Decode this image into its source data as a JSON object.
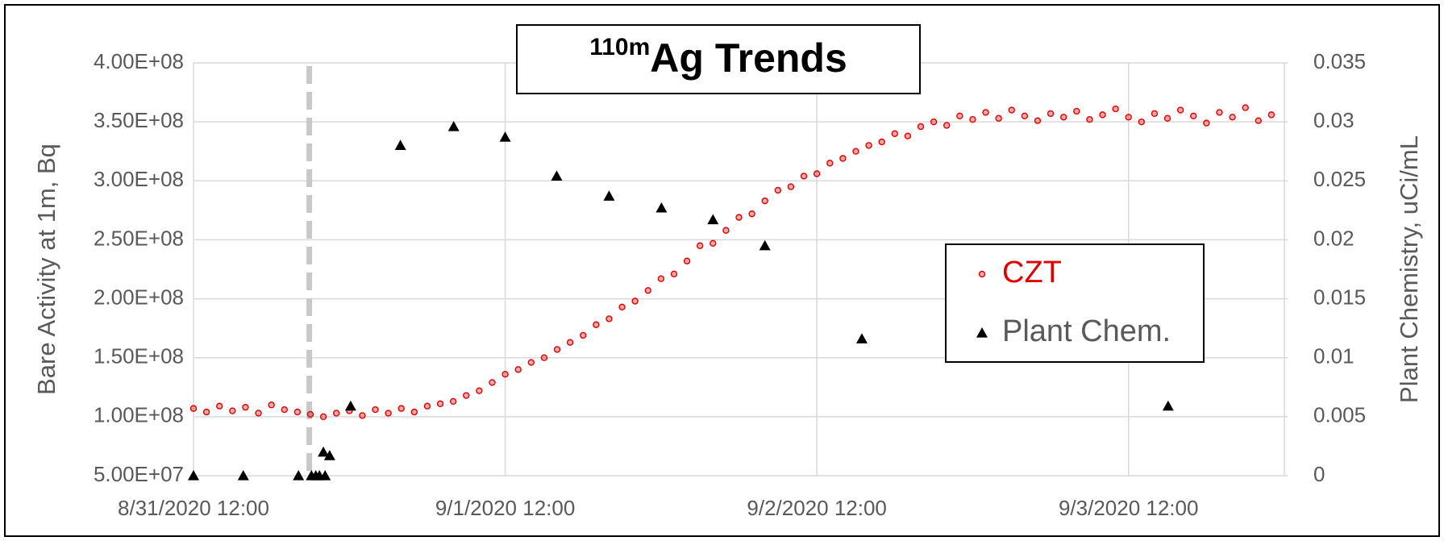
{
  "chart_data": {
    "type": "scatter",
    "title_superscript": "110m",
    "title": "Ag Trends",
    "ylabel": "Bare Activity at 1m, Bq",
    "y2label": "Plant Chemistry, uCi/mL",
    "xlim": [
      "2020-08-31T12:00",
      "2020-09-04T00:00"
    ],
    "xticks": [
      {
        "value": "2020-08-31T12:00",
        "label": "8/31/2020 12:00"
      },
      {
        "value": "2020-09-01T12:00",
        "label": "9/1/2020 12:00"
      },
      {
        "value": "2020-09-02T12:00",
        "label": "9/2/2020 12:00"
      },
      {
        "value": "2020-09-03T12:00",
        "label": "9/3/2020 12:00"
      }
    ],
    "ylim": [
      50000000,
      400000000
    ],
    "yticks": [
      {
        "value": 50000000,
        "label": "5.00E+07"
      },
      {
        "value": 100000000,
        "label": "1.00E+08"
      },
      {
        "value": 150000000,
        "label": "1.50E+08"
      },
      {
        "value": 200000000,
        "label": "2.00E+08"
      },
      {
        "value": 250000000,
        "label": "2.50E+08"
      },
      {
        "value": 300000000,
        "label": "3.00E+08"
      },
      {
        "value": 350000000,
        "label": "3.50E+08"
      },
      {
        "value": 400000000,
        "label": "4.00E+08"
      }
    ],
    "y2lim": [
      0,
      0.035
    ],
    "y2ticks": [
      0,
      0.005,
      0.01,
      0.015,
      0.02,
      0.025,
      0.03,
      0.035
    ],
    "grid": true,
    "legend": "right",
    "vlines": [
      "2020-08-31T20:55"
    ],
    "series": [
      {
        "name": "CZT",
        "color": "#e00000",
        "marker": "circle",
        "axis": "y",
        "x": [
          "2020-08-31T12:00",
          "2020-08-31T13:00",
          "2020-08-31T14:00",
          "2020-08-31T15:00",
          "2020-08-31T16:00",
          "2020-08-31T17:00",
          "2020-08-31T18:00",
          "2020-08-31T19:00",
          "2020-08-31T20:00",
          "2020-08-31T21:00",
          "2020-08-31T22:00",
          "2020-08-31T23:00",
          "2020-09-01T00:00",
          "2020-09-01T01:00",
          "2020-09-01T02:00",
          "2020-09-01T03:00",
          "2020-09-01T04:00",
          "2020-09-01T05:00",
          "2020-09-01T06:00",
          "2020-09-01T07:00",
          "2020-09-01T08:00",
          "2020-09-01T09:00",
          "2020-09-01T10:00",
          "2020-09-01T11:00",
          "2020-09-01T12:00",
          "2020-09-01T13:00",
          "2020-09-01T14:00",
          "2020-09-01T15:00",
          "2020-09-01T16:00",
          "2020-09-01T17:00",
          "2020-09-01T18:00",
          "2020-09-01T19:00",
          "2020-09-01T20:00",
          "2020-09-01T21:00",
          "2020-09-01T22:00",
          "2020-09-01T23:00",
          "2020-09-02T00:00",
          "2020-09-02T01:00",
          "2020-09-02T02:00",
          "2020-09-02T03:00",
          "2020-09-02T04:00",
          "2020-09-02T05:00",
          "2020-09-02T06:00",
          "2020-09-02T07:00",
          "2020-09-02T08:00",
          "2020-09-02T09:00",
          "2020-09-02T10:00",
          "2020-09-02T11:00",
          "2020-09-02T12:00",
          "2020-09-02T13:00",
          "2020-09-02T14:00",
          "2020-09-02T15:00",
          "2020-09-02T16:00",
          "2020-09-02T17:00",
          "2020-09-02T18:00",
          "2020-09-02T19:00",
          "2020-09-02T20:00",
          "2020-09-02T21:00",
          "2020-09-02T22:00",
          "2020-09-02T23:00",
          "2020-09-03T00:00",
          "2020-09-03T01:00",
          "2020-09-03T02:00",
          "2020-09-03T03:00",
          "2020-09-03T04:00",
          "2020-09-03T05:00",
          "2020-09-03T06:00",
          "2020-09-03T07:00",
          "2020-09-03T08:00",
          "2020-09-03T09:00",
          "2020-09-03T10:00",
          "2020-09-03T11:00",
          "2020-09-03T12:00",
          "2020-09-03T13:00",
          "2020-09-03T14:00",
          "2020-09-03T15:00",
          "2020-09-03T16:00",
          "2020-09-03T17:00",
          "2020-09-03T18:00",
          "2020-09-03T19:00",
          "2020-09-03T20:00",
          "2020-09-03T21:00",
          "2020-09-03T22:00",
          "2020-09-03T23:00"
        ],
        "values": [
          107000000.0,
          104000000.0,
          109000000.0,
          105000000.0,
          108000000.0,
          103000000.0,
          110000000.0,
          106000000.0,
          104000000.0,
          102000000.0,
          100000000.0,
          103000000.0,
          105000000.0,
          101000000.0,
          106000000.0,
          103000000.0,
          107000000.0,
          104000000.0,
          109000000.0,
          111000000.0,
          113000000.0,
          118000000.0,
          122000000.0,
          129000000.0,
          136000000.0,
          140000000.0,
          146000000.0,
          150000000.0,
          157000000.0,
          163000000.0,
          169000000.0,
          178000000.0,
          183000000.0,
          193000000.0,
          198000000.0,
          207000000.0,
          217000000.0,
          221000000.0,
          232000000.0,
          245000000.0,
          247000000.0,
          258000000.0,
          269000000.0,
          272000000.0,
          283000000.0,
          292000000.0,
          295000000.0,
          304000000.0,
          306000000.0,
          315000000.0,
          319000000.0,
          325000000.0,
          330000000.0,
          333000000.0,
          340000000.0,
          338000000.0,
          346000000.0,
          350000000.0,
          347000000.0,
          355000000.0,
          352000000.0,
          358000000.0,
          353000000.0,
          360000000.0,
          355000000.0,
          351000000.0,
          357000000.0,
          354000000.0,
          359000000.0,
          352000000.0,
          356000000.0,
          361000000.0,
          354000000.0,
          350000000.0,
          357000000.0,
          353000000.0,
          360000000.0,
          355000000.0,
          349000000.0,
          358000000.0,
          354000000.0,
          362000000.0,
          351000000.0,
          356000000.0
        ]
      },
      {
        "name": "Plant Chem.",
        "color": "#000000",
        "marker": "triangle",
        "axis": "y2",
        "x": [
          "2020-08-31T12:00",
          "2020-08-31T15:50",
          "2020-08-31T20:05",
          "2020-08-31T21:05",
          "2020-08-31T21:25",
          "2020-08-31T21:42",
          "2020-08-31T22:08",
          "2020-08-31T22:00",
          "2020-08-31T22:29",
          "2020-09-01T00:06",
          "2020-09-01T03:56",
          "2020-09-01T08:02",
          "2020-09-01T12:00",
          "2020-09-01T15:58",
          "2020-09-01T20:00",
          "2020-09-02T00:02",
          "2020-09-02T04:00",
          "2020-09-02T08:00",
          "2020-09-02T15:28",
          "2020-09-03T15:03"
        ],
        "values": [
          0,
          0,
          0,
          0,
          0,
          0,
          0,
          0.002,
          0.0017,
          0.0059,
          0.028,
          0.0296,
          0.0287,
          0.0254,
          0.0237,
          0.0227,
          0.0217,
          0.0195,
          0.0116,
          0.0059
        ]
      }
    ]
  }
}
